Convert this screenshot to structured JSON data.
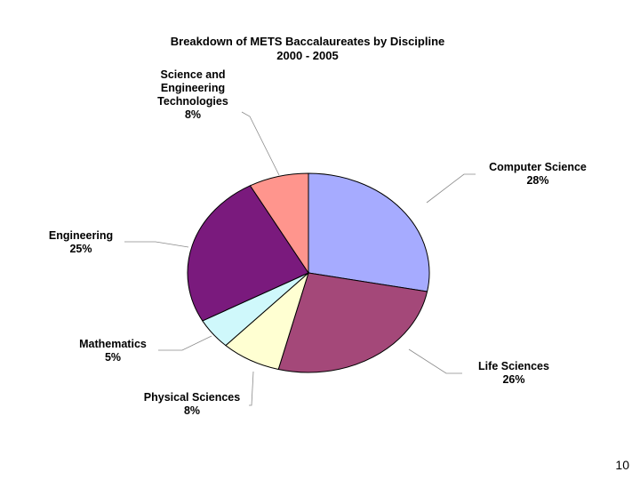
{
  "chart_data": {
    "type": "pie",
    "title_lines": [
      "Breakdown of METS Baccalaureates by Discipline",
      "2000 - 2005"
    ],
    "slices": [
      {
        "label": [
          "Computer Science"
        ],
        "value_label": "28%",
        "value": 28,
        "color": "#a6abff"
      },
      {
        "label": [
          "Life Sciences"
        ],
        "value_label": "26%",
        "value": 26,
        "color": "#a44879"
      },
      {
        "label": [
          "Physical Sciences"
        ],
        "value_label": "8%",
        "value": 8,
        "color": "#ffffd2"
      },
      {
        "label": [
          "Mathematics"
        ],
        "value_label": "5%",
        "value": 5,
        "color": "#cff8fb"
      },
      {
        "label": [
          "Engineering"
        ],
        "value_label": "25%",
        "value": 25,
        "color": "#7a1a7d"
      },
      {
        "label": [
          "Science and",
          "Engineering",
          "Technologies"
        ],
        "value_label": "8%",
        "value": 8,
        "color": "#ff958d"
      }
    ]
  },
  "page_number": "10"
}
